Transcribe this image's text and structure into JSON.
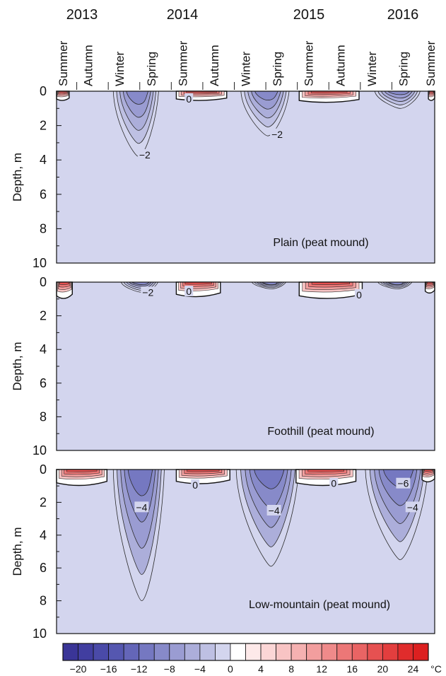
{
  "chart_data": {
    "type": "heatmap",
    "title": "",
    "colorbar": {
      "unit": "°C",
      "levels": [
        -22,
        -20,
        -18,
        -16,
        -14,
        -12,
        -10,
        -8,
        -6,
        -4,
        -2,
        0,
        2,
        4,
        6,
        8,
        10,
        12,
        14,
        16,
        18,
        20,
        22,
        24,
        26
      ],
      "tick_labels": [
        "−20",
        "−16",
        "−12",
        "−8",
        "−4",
        "0",
        "4",
        "8",
        "12",
        "16",
        "20",
        "24"
      ],
      "tick_values": [
        -20,
        -16,
        -12,
        -8,
        -4,
        0,
        4,
        8,
        12,
        16,
        20,
        24
      ],
      "colors": [
        "#3a3597",
        "#413ea0",
        "#4a4aa8",
        "#5557b0",
        "#6466b8",
        "#7578c1",
        "#878ac9",
        "#9a9cd2",
        "#acaeda",
        "#bec0e3",
        "#d3d5ee",
        "#ffffff",
        "#fde9e9",
        "#fbd6d6",
        "#f8c4c4",
        "#f5b1b1",
        "#f29e9e",
        "#ef8a8a",
        "#ec7777",
        "#e96464",
        "#e65151",
        "#e33e3e",
        "#e02c2c",
        "#dc2020"
      ]
    },
    "x_axis": {
      "years": [
        "2013",
        "2014",
        "2015",
        "2016"
      ],
      "seasons": [
        "Summer",
        "Autumn",
        "Winter",
        "Spring",
        "Summer",
        "Autumn",
        "Winter",
        "Spring",
        "Summer",
        "Autumn",
        "Winter",
        "Spring",
        "Summer"
      ]
    },
    "y_axis": {
      "label": "Depth, m",
      "ticks": [
        "0",
        "2",
        "4",
        "6",
        "8",
        "10"
      ],
      "ylim": [
        0,
        10
      ],
      "inverted": true
    },
    "panels": [
      {
        "name": "Plain (peat mound)",
        "contour_labels": [
          {
            "text": "0",
            "season_index": 4.2,
            "depth": 0.45
          },
          {
            "text": "−2",
            "season_index": 2.8,
            "depth": 3.7
          },
          {
            "text": "−2",
            "season_index": 7.0,
            "depth": 2.5
          }
        ],
        "cold_tongues": [
          {
            "start": 1.8,
            "peak": 2.6,
            "end": 3.4,
            "max_depth": 3.8
          },
          {
            "start": 5.9,
            "peak": 6.7,
            "end": 7.6,
            "max_depth": 2.6
          },
          {
            "start": 10.0,
            "peak": 10.9,
            "end": 11.6,
            "max_depth": 1.0
          }
        ],
        "warm_cores": [
          {
            "start": 0.0,
            "end": 0.4,
            "max_depth": 0.5
          },
          {
            "start": 3.8,
            "end": 5.4,
            "max_depth": 0.5
          },
          {
            "start": 7.7,
            "end": 9.6,
            "max_depth": 0.6
          },
          {
            "start": 11.8,
            "end": 12.0,
            "max_depth": 0.5
          }
        ]
      },
      {
        "name": "Foothill (peat mound)",
        "contour_labels": [
          {
            "text": "−2",
            "season_index": 2.9,
            "depth": 0.6
          },
          {
            "text": "0",
            "season_index": 4.2,
            "depth": 0.55
          },
          {
            "text": "0",
            "season_index": 9.6,
            "depth": 0.75
          }
        ],
        "cold_tongues": [
          {
            "start": 2.0,
            "peak": 2.7,
            "end": 3.3,
            "max_depth": 0.6
          },
          {
            "start": 6.2,
            "peak": 6.8,
            "end": 7.4,
            "max_depth": 0.4
          },
          {
            "start": 10.2,
            "peak": 10.8,
            "end": 11.4,
            "max_depth": 0.4
          }
        ],
        "warm_cores": [
          {
            "start": 0.0,
            "end": 0.5,
            "max_depth": 0.9
          },
          {
            "start": 3.8,
            "end": 5.2,
            "max_depth": 0.8
          },
          {
            "start": 7.7,
            "end": 9.7,
            "max_depth": 0.9
          },
          {
            "start": 11.7,
            "end": 12.0,
            "max_depth": 0.6
          }
        ]
      },
      {
        "name": "Low-mountain (peat mound)",
        "contour_labels": [
          {
            "text": "0",
            "season_index": 4.4,
            "depth": 0.95
          },
          {
            "text": "0",
            "season_index": 8.8,
            "depth": 0.85
          },
          {
            "text": "−4",
            "season_index": 2.7,
            "depth": 2.3
          },
          {
            "text": "−4",
            "season_index": 6.9,
            "depth": 2.5
          },
          {
            "text": "−6",
            "season_index": 11.0,
            "depth": 0.85
          },
          {
            "text": "−4",
            "season_index": 11.3,
            "depth": 2.3
          }
        ],
        "cold_tongues": [
          {
            "start": 1.8,
            "peak": 2.7,
            "end": 3.6,
            "max_depth": 8.0
          },
          {
            "start": 5.8,
            "peak": 6.8,
            "end": 8.0,
            "max_depth": 5.9
          },
          {
            "start": 9.8,
            "peak": 10.9,
            "end": 12.0,
            "max_depth": 5.5
          }
        ],
        "warm_cores": [
          {
            "start": 0.0,
            "end": 1.6,
            "max_depth": 0.9
          },
          {
            "start": 3.8,
            "end": 5.5,
            "max_depth": 0.8
          },
          {
            "start": 7.6,
            "end": 9.5,
            "max_depth": 0.9
          },
          {
            "start": 11.6,
            "end": 12.0,
            "max_depth": 0.7
          }
        ]
      }
    ]
  }
}
